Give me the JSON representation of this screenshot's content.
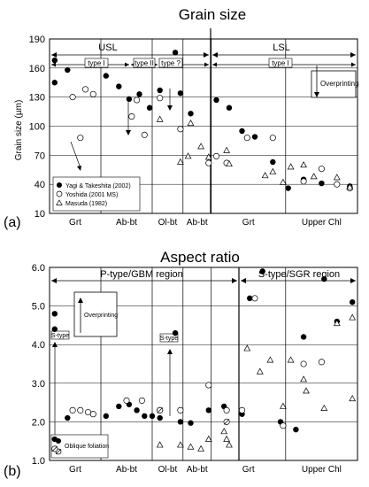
{
  "chart_data": [
    {
      "type": "scatter",
      "panel_label": "(a)",
      "title": "Grain size",
      "ylabel": "Grain size (µm)",
      "ylim": [
        10,
        190
      ],
      "yticks": [
        10,
        40,
        70,
        100,
        130,
        160,
        190
      ],
      "categories": [
        "Grt",
        "Ab-bt",
        "Ol-bt",
        "Ab-bt",
        "Grt",
        "Upper Chl"
      ],
      "regions": [
        {
          "label": "USL",
          "from_category": 0,
          "to_category": 2
        },
        {
          "label": "LSL",
          "from_category": 3,
          "to_category": 5
        }
      ],
      "type_labels": [
        {
          "text": "type I",
          "span": "Grt–Ab-bt"
        },
        {
          "text": "type II",
          "span": "Ab-bt"
        },
        {
          "text": "type ?",
          "span": "Ol-bt"
        },
        {
          "text": "type I",
          "span": "Ab-bt–Upper Chl"
        }
      ],
      "annotation": "Overprinting",
      "legend": {
        "position": "bottom-left",
        "items": [
          {
            "symbol": "filled-circle",
            "label": "Yagi & Takeshita (2002)"
          },
          {
            "symbol": "open-circle",
            "label": "Yoshida (2001 MS)"
          },
          {
            "symbol": "open-triangle",
            "label": "Masuda (1982)"
          }
        ]
      },
      "series": [
        {
          "name": "Yagi & Takeshita (2002)",
          "marker": "filled-circle",
          "points": [
            [
              0.1,
              168
            ],
            [
              0.1,
              145
            ],
            [
              0.35,
              158
            ],
            [
              1.1,
              152
            ],
            [
              1.35,
              141
            ],
            [
              1.55,
              128
            ],
            [
              1.75,
              133
            ],
            [
              1.95,
              119
            ],
            [
              2.15,
              137
            ],
            [
              2.45,
              176
            ],
            [
              2.55,
              134
            ],
            [
              2.75,
              113
            ],
            [
              3.25,
              127
            ],
            [
              3.5,
              119
            ],
            [
              3.75,
              95
            ],
            [
              4.0,
              89
            ],
            [
              4.35,
              63
            ],
            [
              4.65,
              36
            ],
            [
              4.95,
              45
            ],
            [
              5.3,
              41
            ],
            [
              5.6,
              40
            ],
            [
              5.85,
              38
            ]
          ]
        },
        {
          "name": "Yoshida (2001 MS)",
          "marker": "open-circle",
          "points": [
            [
              0.45,
              130
            ],
            [
              0.6,
              88
            ],
            [
              0.7,
              138
            ],
            [
              0.85,
              133
            ],
            [
              1.6,
              110
            ],
            [
              1.7,
              127
            ],
            [
              1.85,
              91
            ],
            [
              2.15,
              129
            ],
            [
              2.55,
              97
            ],
            [
              3.1,
              62
            ],
            [
              3.25,
              69
            ],
            [
              3.45,
              62
            ],
            [
              3.85,
              88
            ],
            [
              4.35,
              88
            ],
            [
              4.95,
              43
            ],
            [
              5.3,
              56
            ],
            [
              5.6,
              40
            ],
            [
              5.85,
              36
            ]
          ]
        },
        {
          "name": "Masuda (1982)",
          "marker": "open-triangle",
          "points": [
            [
              2.15,
              107
            ],
            [
              2.55,
              63
            ],
            [
              2.7,
              69
            ],
            [
              2.95,
              79
            ],
            [
              2.75,
              103
            ],
            [
              3.1,
              68
            ],
            [
              3.45,
              75
            ],
            [
              3.5,
              61
            ],
            [
              4.2,
              49
            ],
            [
              4.35,
              53
            ],
            [
              4.55,
              42
            ],
            [
              4.7,
              58
            ],
            [
              4.95,
              60
            ],
            [
              5.15,
              48
            ],
            [
              5.6,
              47
            ],
            [
              5.85,
              37
            ]
          ]
        }
      ]
    },
    {
      "type": "scatter",
      "panel_label": "(b)",
      "title": "Aspect ratio",
      "ylim": [
        1.0,
        6.0
      ],
      "yticks": [
        1.0,
        2.0,
        3.0,
        4.0,
        5.0,
        6.0
      ],
      "categories": [
        "Grt",
        "Ab-bt",
        "Ol-bt",
        "Ab-bt",
        "Grt",
        "Upper Chl"
      ],
      "regions": [
        {
          "label": "P-type/GBM region",
          "from_category": 0,
          "to_category": 3
        },
        {
          "label": "S-type/SGR region",
          "from_category": 4,
          "to_category": 5
        }
      ],
      "annotations": [
        "S-type",
        "Overprinting",
        "S-type"
      ],
      "legend": {
        "position": "bottom-left",
        "items": [
          {
            "symbol": "filled-circle-and-slashed-circle",
            "label": "Oblique foliation"
          }
        ]
      },
      "series": [
        {
          "name": "Yagi & Takeshita (2002)",
          "marker": "filled-circle",
          "points": [
            [
              0.1,
              4.8
            ],
            [
              0.1,
              4.4
            ],
            [
              0.35,
              2.1
            ],
            [
              1.1,
              2.15
            ],
            [
              1.35,
              2.4
            ],
            [
              1.55,
              2.45
            ],
            [
              1.7,
              2.3
            ],
            [
              1.85,
              2.15
            ],
            [
              2.0,
              2.15
            ],
            [
              2.15,
              2.1
            ],
            [
              2.45,
              4.3
            ],
            [
              2.55,
              2.0
            ],
            [
              2.75,
              1.97
            ],
            [
              3.1,
              2.3
            ],
            [
              3.4,
              2.4
            ],
            [
              3.75,
              2.2
            ],
            [
              3.9,
              5.2
            ],
            [
              4.15,
              5.9
            ],
            [
              4.5,
              2.0
            ],
            [
              4.8,
              1.8
            ],
            [
              4.95,
              4.2
            ],
            [
              5.35,
              5.7
            ],
            [
              5.6,
              4.6
            ],
            [
              5.9,
              5.1
            ],
            [
              0.1,
              1.55
            ]
          ]
        },
        {
          "name": "Yoshida (2001 MS)",
          "marker": "open-circle",
          "points": [
            [
              0.45,
              2.3
            ],
            [
              0.6,
              2.3
            ],
            [
              0.75,
              2.25
            ],
            [
              0.85,
              2.2
            ],
            [
              1.5,
              2.55
            ],
            [
              1.8,
              2.55
            ],
            [
              2.15,
              2.3
            ],
            [
              2.55,
              2.3
            ],
            [
              3.1,
              2.95
            ],
            [
              3.45,
              2.3
            ],
            [
              3.75,
              2.3
            ],
            [
              4.0,
              5.2
            ],
            [
              4.55,
              1.9
            ],
            [
              4.95,
              3.5
            ],
            [
              5.3,
              3.55
            ]
          ]
        },
        {
          "name": "Masuda (1982)",
          "marker": "open-triangle",
          "points": [
            [
              2.15,
              1.4
            ],
            [
              2.55,
              1.4
            ],
            [
              2.75,
              1.35
            ],
            [
              2.95,
              1.3
            ],
            [
              3.1,
              1.55
            ],
            [
              3.4,
              1.75
            ],
            [
              3.45,
              1.55
            ],
            [
              3.5,
              1.4
            ],
            [
              3.85,
              3.9
            ],
            [
              4.1,
              3.3
            ],
            [
              4.3,
              3.6
            ],
            [
              4.55,
              2.4
            ],
            [
              4.7,
              3.6
            ],
            [
              4.95,
              3.1
            ],
            [
              5.0,
              2.8
            ],
            [
              5.6,
              4.55
            ],
            [
              5.35,
              2.35
            ],
            [
              5.9,
              4.7
            ],
            [
              5.9,
              2.6
            ]
          ]
        },
        {
          "name": "Oblique foliation",
          "marker": "slashed-circle",
          "points": [
            [
              0.1,
              1.3
            ],
            [
              2.15,
              2.3
            ],
            [
              3.45,
              2.0
            ]
          ]
        }
      ]
    }
  ]
}
